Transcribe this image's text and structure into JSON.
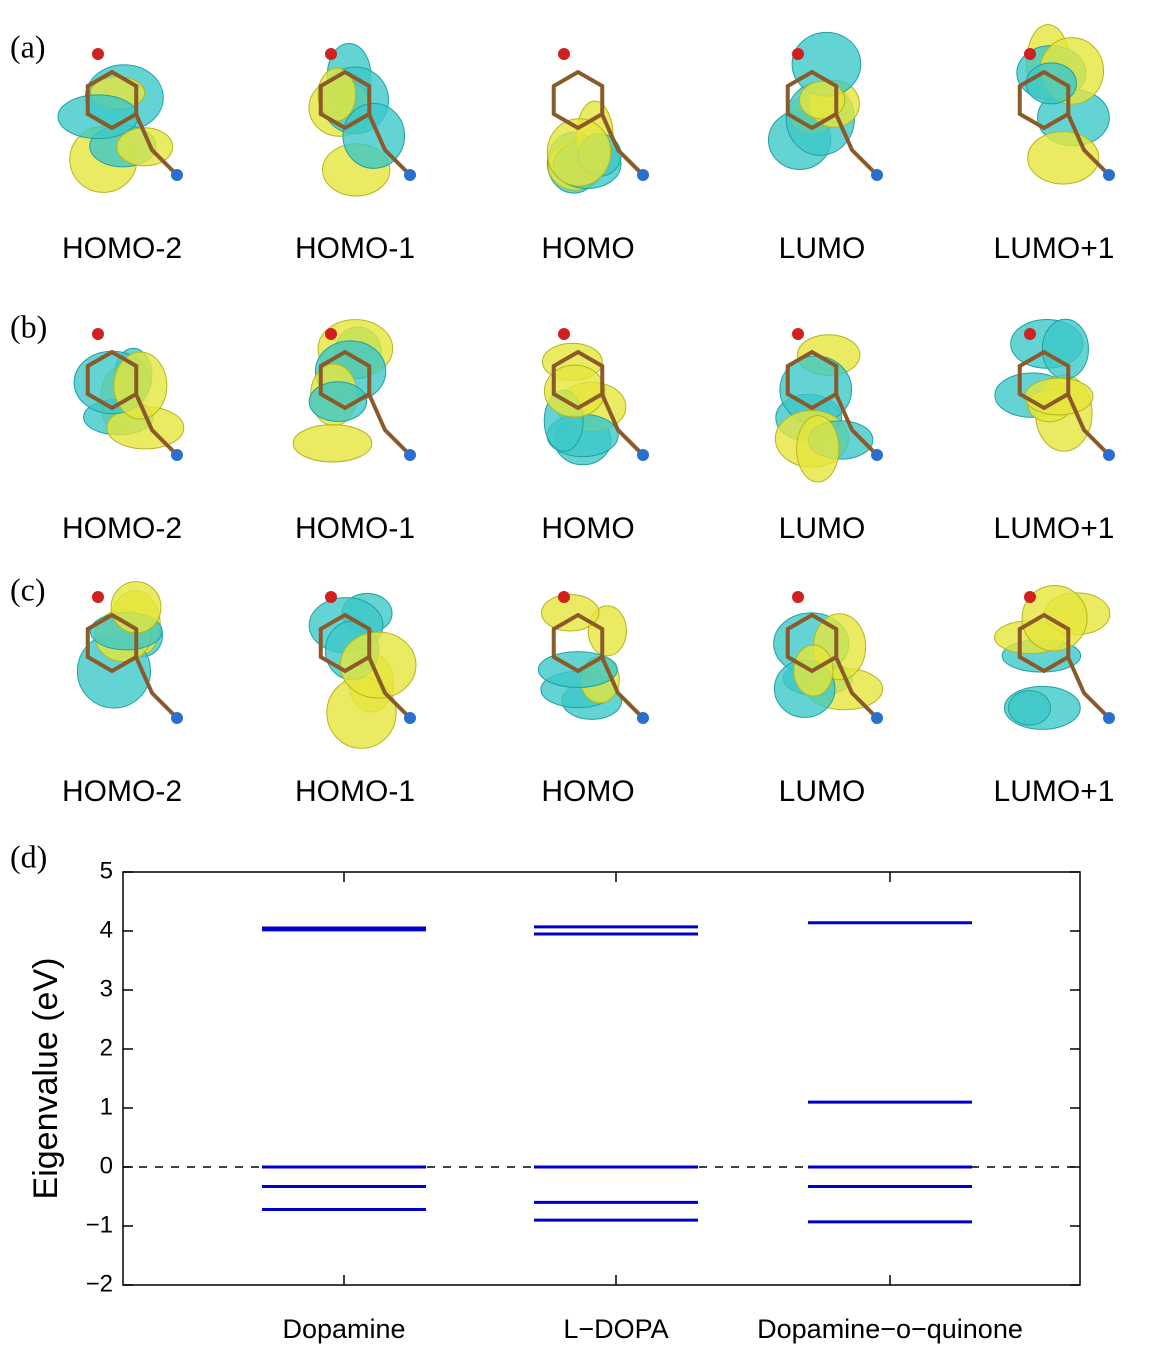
{
  "panels": [
    {
      "label": "(a)",
      "orbitals": [
        "HOMO-2",
        "HOMO-1",
        "HOMO",
        "LUMO",
        "LUMO+1"
      ]
    },
    {
      "label": "(b)",
      "orbitals": [
        "HOMO-2",
        "HOMO-1",
        "HOMO",
        "LUMO",
        "LUMO+1"
      ]
    },
    {
      "label": "(c)",
      "orbitals": [
        "HOMO-2",
        "HOMO-1",
        "HOMO",
        "LUMO",
        "LUMO+1"
      ]
    }
  ],
  "chart_data": {
    "type": "levels",
    "panel_label": "(d)",
    "y_label": "Eigenvalue (eV)",
    "categories": [
      "Dopamine",
      "L−DOPA",
      "Dopamine−o−quinone"
    ],
    "values": [
      [
        4.05,
        4.02,
        0,
        -0.33,
        -0.72
      ],
      [
        4.07,
        3.95,
        0,
        -0.6,
        -0.9
      ],
      [
        4.14,
        1.1,
        0,
        -0.33,
        -0.93
      ]
    ],
    "color": "#0000cc",
    "reference_line": 0,
    "ylim": [
      -2,
      5
    ],
    "yticks": [
      {
        "value": -2,
        "label": "−2"
      },
      {
        "value": -1,
        "label": "−1"
      },
      0,
      1,
      2,
      3,
      4,
      5
    ]
  }
}
